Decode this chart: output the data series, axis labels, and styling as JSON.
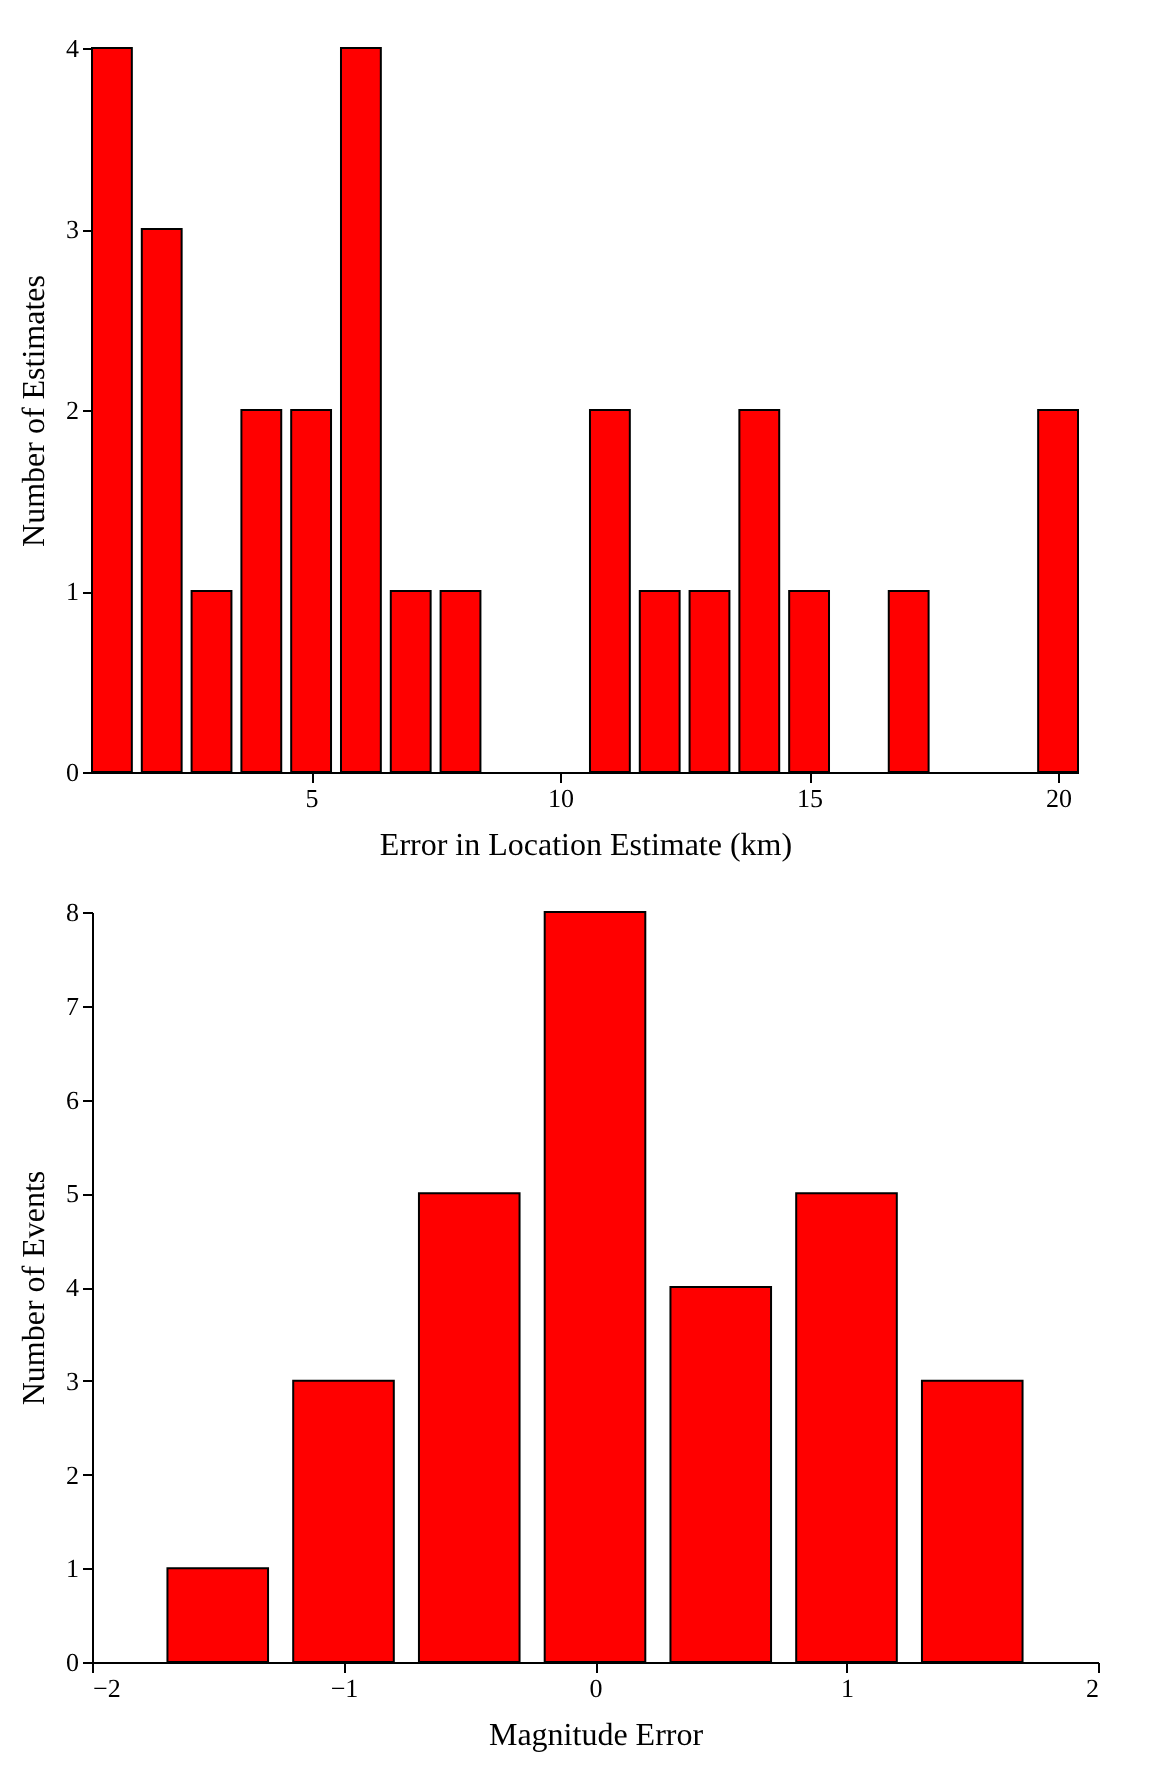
{
  "chart_data": [
    {
      "type": "bar",
      "xlabel": "Error in Location Estimate (km)",
      "ylabel": "Number of Estimates",
      "color": "#ff0000",
      "x": [
        1,
        2,
        3,
        4,
        5,
        6,
        7,
        8,
        11,
        12,
        13,
        14,
        15,
        17,
        20
      ],
      "values": [
        4,
        3,
        1,
        2,
        2,
        4,
        1,
        1,
        2,
        1,
        1,
        2,
        1,
        1,
        2
      ],
      "xlim": [
        0.6,
        20.4
      ],
      "xticks": [
        5,
        10,
        15,
        20
      ],
      "ylim": [
        0,
        4
      ],
      "yticks": [
        0,
        1,
        2,
        3,
        4
      ]
    },
    {
      "type": "bar",
      "xlabel": "Magnitude Error",
      "ylabel": "Number of Events",
      "color": "#ff0000",
      "x": [
        -1.5,
        -1,
        -0.5,
        0,
        0.5,
        1,
        1.5
      ],
      "values": [
        1,
        3,
        5,
        8,
        4,
        5,
        3
      ],
      "xlim": [
        -2,
        2
      ],
      "xticks": [
        -2,
        -1,
        0,
        1,
        2
      ],
      "ylim": [
        0,
        8
      ],
      "yticks": [
        0,
        1,
        2,
        3,
        4,
        5,
        6,
        7,
        8
      ]
    }
  ]
}
